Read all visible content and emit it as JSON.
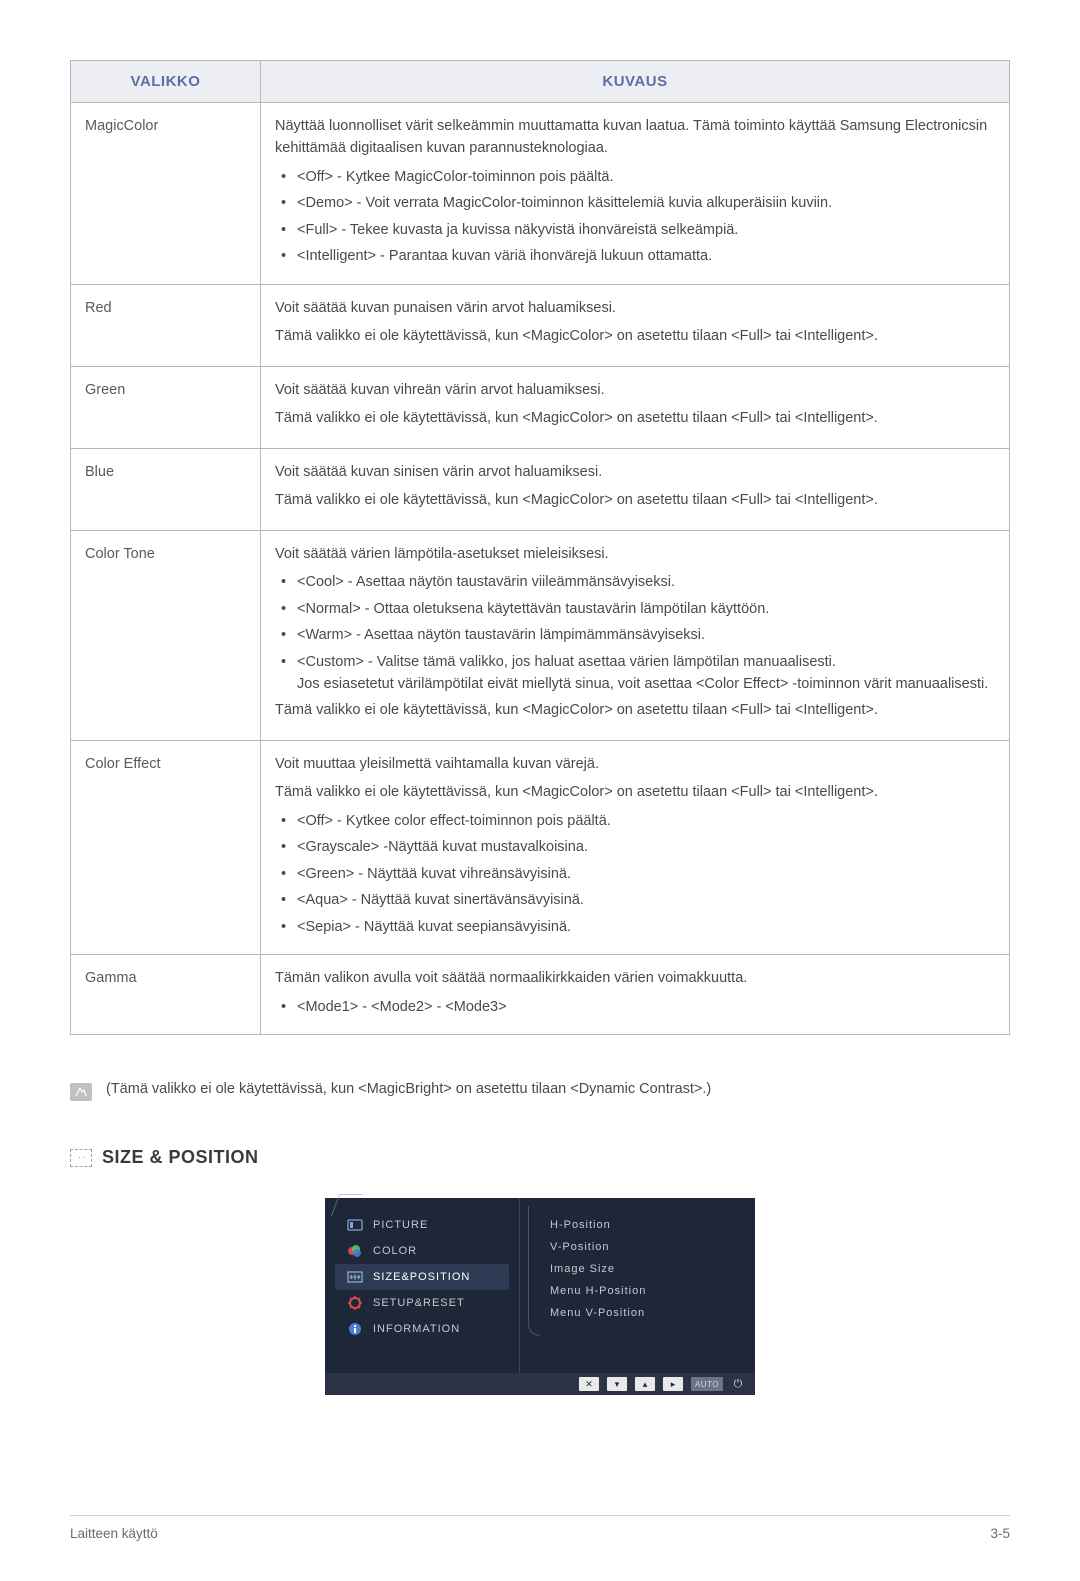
{
  "table": {
    "header_menu": "VALIKKO",
    "header_desc": "KUVAUS",
    "rows": [
      {
        "name": "MagicColor",
        "para1": "Näyttää luonnolliset värit selkeämmin muuttamatta kuvan laatua. Tämä toiminto käyttää Samsung Electronicsin kehittämää digitaalisen kuvan parannusteknologiaa.",
        "bullets": [
          "<Off> - Kytkee MagicColor-toiminnon pois päältä.",
          "<Demo> - Voit verrata MagicColor-toiminnon käsittelemiä kuvia alkuperäisiin kuviin.",
          "<Full> - Tekee kuvasta ja kuvissa näkyvistä ihonväreistä selkeämpiä.",
          "<Intelligent> - Parantaa kuvan väriä ihonvärejä lukuun ottamatta."
        ]
      },
      {
        "name": "Red",
        "para1": "Voit säätää kuvan punaisen värin arvot haluamiksesi.",
        "para2": "Tämä valikko ei ole käytettävissä, kun <MagicColor> on asetettu tilaan <Full> tai <Intelligent>."
      },
      {
        "name": "Green",
        "para1": "Voit säätää kuvan vihreän värin arvot haluamiksesi.",
        "para2": "Tämä valikko ei ole käytettävissä, kun <MagicColor> on asetettu tilaan <Full> tai <Intelligent>."
      },
      {
        "name": "Blue",
        "para1": "Voit säätää kuvan sinisen värin arvot haluamiksesi.",
        "para2": "Tämä valikko ei ole käytettävissä, kun <MagicColor> on asetettu tilaan <Full> tai <Intelligent>."
      },
      {
        "name": "Color Tone",
        "para1": "Voit säätää värien lämpötila-asetukset mieleisiksesi.",
        "bullets": [
          "<Cool> - Asettaa näytön taustavärin viileämmänsävyiseksi.",
          "<Normal> - Ottaa oletuksena käytettävän taustavärin lämpötilan käyttöön.",
          "<Warm> - Asettaa näytön taustavärin lämpimämmänsävyiseksi.",
          "<Custom> - Valitse tämä valikko, jos haluat asettaa värien lämpötilan manuaalisesti.\nJos esiasetetut värilämpötilat eivät miellytä sinua, voit asettaa <Color Effect> -toiminnon värit manuaalisesti."
        ],
        "para2": "Tämä valikko ei ole käytettävissä, kun <MagicColor> on asetettu tilaan <Full> tai <Intelligent>."
      },
      {
        "name": "Color Effect",
        "para1": "Voit muuttaa yleisilmettä vaihtamalla kuvan värejä.",
        "para2": "Tämä valikko ei ole käytettävissä, kun <MagicColor> on asetettu tilaan <Full> tai <Intelligent>.",
        "bullets": [
          "<Off> - Kytkee color effect-toiminnon pois päältä.",
          "<Grayscale> -Näyttää kuvat mustavalkoisina.",
          "<Green> - Näyttää kuvat vihreänsävyisinä.",
          "<Aqua> - Näyttää kuvat sinertävänsävyisinä.",
          "<Sepia> - Näyttää kuvat seepiansävyisinä."
        ]
      },
      {
        "name": "Gamma",
        "para1": "Tämän valikon avulla voit säätää normaalikirkkaiden värien voimakkuutta.",
        "bullets": [
          "<Mode1> - <Mode2> - <Mode3>"
        ]
      }
    ]
  },
  "note_text": "(Tämä valikko ei ole käytettävissä, kun <MagicBright> on asetettu tilaan <Dynamic Contrast>.)",
  "section_heading": "SIZE & POSITION",
  "osd": {
    "left": [
      "PICTURE",
      "COLOR",
      "SIZE&POSITION",
      "SETUP&RESET",
      "INFORMATION"
    ],
    "active_index": 2,
    "right": [
      "H-Position",
      "V-Position",
      "Image Size",
      "Menu H-Position",
      "Menu V-Position"
    ],
    "foot_auto": "AUTO"
  },
  "footer_left": "Laitteen käyttö",
  "footer_right": "3-5",
  "colors": {
    "header_bg": "#eceef4",
    "header_text": "#5f6ea3",
    "border": "#b8b8b8",
    "body_text": "#4a4a4a",
    "osd_bg": "#1d2738",
    "osd_foot_bg": "#2a3244",
    "osd_active_bg": "#2f3b54",
    "osd_text": "#c7c9cf"
  }
}
